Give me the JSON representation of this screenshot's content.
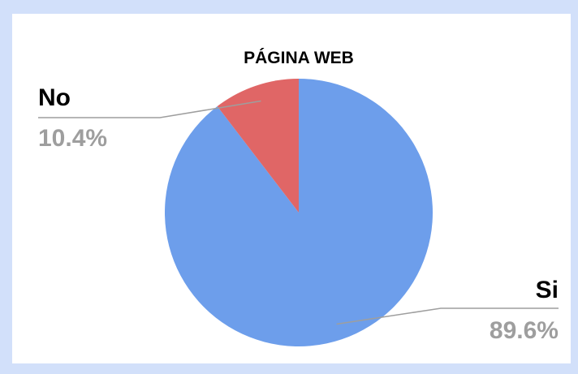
{
  "chart_data": {
    "type": "pie",
    "title": "PÁGINA WEB",
    "slices": [
      {
        "label": "Si",
        "value": 89.6,
        "display": "89.6%",
        "color": "#6d9eeb"
      },
      {
        "label": "No",
        "value": 10.4,
        "display": "10.4%",
        "color": "#e06666"
      }
    ],
    "start": "12 o'clock",
    "direction": "clockwise",
    "legend": "none"
  },
  "colors": {
    "page_background": "#d2e0fa",
    "card_background": "#ffffff",
    "leader_line": "#9e9e9e",
    "percent_text": "#9e9e9e"
  }
}
